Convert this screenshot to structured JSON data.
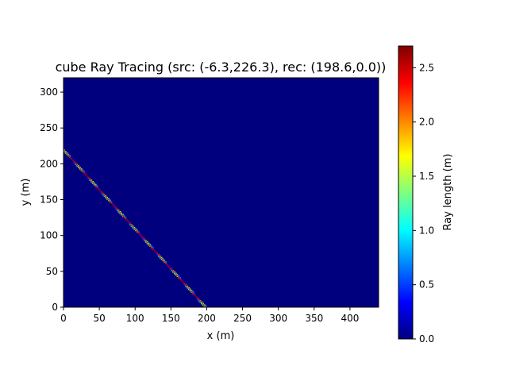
{
  "chart_data": {
    "type": "heatmap",
    "title": "cube Ray Tracing (src: (-6.3,226.3), rec: (198.6,0.0))",
    "xlabel": "x (m)",
    "ylabel": "y (m)",
    "xlim": [
      0,
      440
    ],
    "ylim": [
      0,
      320
    ],
    "x_ticks": [
      0,
      50,
      100,
      150,
      200,
      250,
      300,
      350,
      400
    ],
    "y_ticks": [
      0,
      50,
      100,
      150,
      200,
      250,
      300
    ],
    "colormap": "jet",
    "background_value": 0.0,
    "source": [
      -6.3,
      226.3
    ],
    "receiver": [
      198.6,
      0.0
    ],
    "colorbar": {
      "label": "Ray length (m)",
      "range": [
        0.0,
        2.7
      ],
      "ticks": [
        0.0,
        0.5,
        1.0,
        1.5,
        2.0,
        2.5
      ]
    }
  }
}
